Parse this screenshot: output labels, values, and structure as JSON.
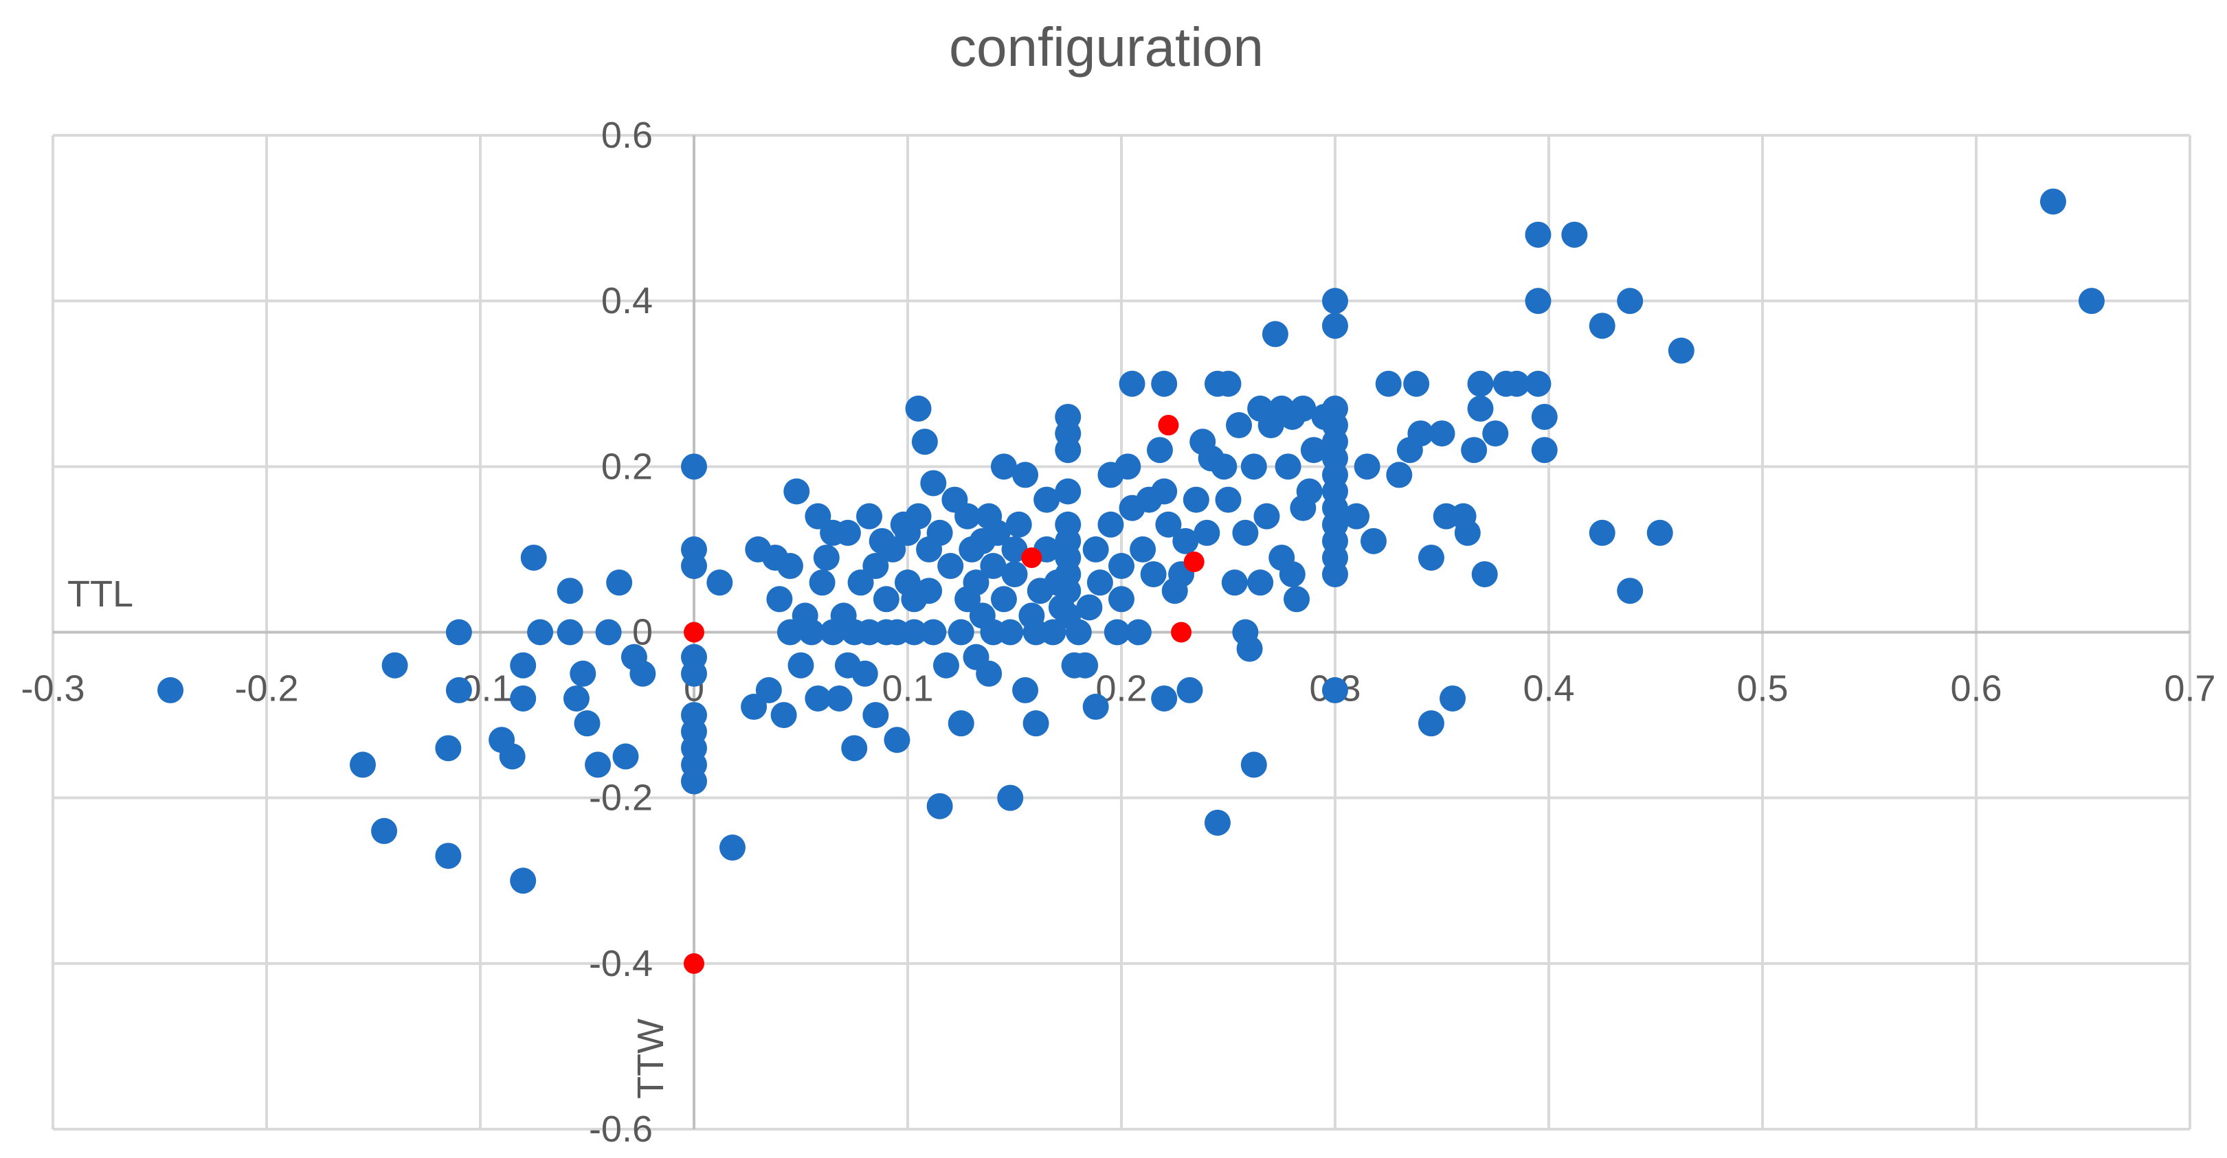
{
  "chart_data": {
    "type": "scatter",
    "title": "configuration",
    "xlabel": "TTL",
    "ylabel": "TTW",
    "xlim": [
      -0.3,
      0.7
    ],
    "ylim": [
      -0.6,
      0.6
    ],
    "x_ticks": [
      -0.3,
      -0.2,
      -0.1,
      0,
      0.1,
      0.2,
      0.3,
      0.4,
      0.5,
      0.6,
      0.7
    ],
    "y_ticks": [
      -0.6,
      -0.4,
      -0.2,
      0,
      0.2,
      0.4,
      0.6
    ],
    "x_tick_labels": [
      "-0.3",
      "-0.2",
      "-0.1",
      "0",
      "0.1",
      "0.2",
      "0.3",
      "0.4",
      "0.5",
      "0.6",
      "0.7"
    ],
    "y_tick_labels": [
      "-0.6",
      "-0.4",
      "-0.2",
      "0",
      "0.2",
      "0.4",
      "0.6"
    ],
    "grid": true,
    "legend": "none",
    "series": [
      {
        "color": "#1f6fc5",
        "points": [
          [
            -0.245,
            -0.07
          ],
          [
            -0.155,
            -0.16
          ],
          [
            -0.145,
            -0.24
          ],
          [
            -0.14,
            -0.04
          ],
          [
            -0.115,
            -0.27
          ],
          [
            -0.115,
            -0.14
          ],
          [
            -0.11,
            0.0
          ],
          [
            -0.11,
            -0.07
          ],
          [
            -0.09,
            -0.13
          ],
          [
            -0.085,
            -0.15
          ],
          [
            -0.08,
            -0.04
          ],
          [
            -0.08,
            -0.08
          ],
          [
            -0.08,
            -0.3
          ],
          [
            -0.075,
            0.09
          ],
          [
            -0.072,
            0.0
          ],
          [
            -0.058,
            0.0
          ],
          [
            -0.058,
            0.05
          ],
          [
            -0.055,
            -0.08
          ],
          [
            -0.052,
            -0.05
          ],
          [
            -0.05,
            -0.11
          ],
          [
            -0.045,
            -0.16
          ],
          [
            -0.04,
            0.0
          ],
          [
            -0.035,
            0.06
          ],
          [
            -0.032,
            -0.15
          ],
          [
            -0.028,
            -0.03
          ],
          [
            -0.024,
            -0.05
          ],
          [
            0.0,
            0.2
          ],
          [
            0.0,
            0.1
          ],
          [
            0.0,
            0.08
          ],
          [
            0.0,
            -0.05
          ],
          [
            0.0,
            -0.1
          ],
          [
            0.0,
            -0.12
          ],
          [
            0.0,
            -0.14
          ],
          [
            0.0,
            -0.16
          ],
          [
            0.0,
            -0.18
          ],
          [
            0.0,
            -0.03
          ],
          [
            0.012,
            0.06
          ],
          [
            0.018,
            -0.26
          ],
          [
            0.028,
            -0.09
          ],
          [
            0.03,
            0.1
          ],
          [
            0.035,
            -0.07
          ],
          [
            0.038,
            0.09
          ],
          [
            0.04,
            0.04
          ],
          [
            0.042,
            -0.1
          ],
          [
            0.045,
            0.08
          ],
          [
            0.045,
            0.0
          ],
          [
            0.048,
            0.17
          ],
          [
            0.05,
            -0.04
          ],
          [
            0.052,
            0.02
          ],
          [
            0.055,
            0.0
          ],
          [
            0.058,
            0.14
          ],
          [
            0.058,
            -0.08
          ],
          [
            0.06,
            0.06
          ],
          [
            0.062,
            0.09
          ],
          [
            0.065,
            0.0
          ],
          [
            0.065,
            0.12
          ],
          [
            0.068,
            -0.08
          ],
          [
            0.07,
            0.02
          ],
          [
            0.072,
            0.12
          ],
          [
            0.072,
            -0.04
          ],
          [
            0.075,
            0.0
          ],
          [
            0.075,
            -0.14
          ],
          [
            0.078,
            0.06
          ],
          [
            0.08,
            -0.05
          ],
          [
            0.082,
            0.14
          ],
          [
            0.082,
            0.0
          ],
          [
            0.085,
            0.08
          ],
          [
            0.085,
            -0.1
          ],
          [
            0.088,
            0.11
          ],
          [
            0.09,
            0.0
          ],
          [
            0.09,
            0.04
          ],
          [
            0.093,
            0.1
          ],
          [
            0.095,
            -0.13
          ],
          [
            0.095,
            0.0
          ],
          [
            0.098,
            0.13
          ],
          [
            0.1,
            0.06
          ],
          [
            0.1,
            0.12
          ],
          [
            0.103,
            0.0
          ],
          [
            0.103,
            0.04
          ],
          [
            0.105,
            0.14
          ],
          [
            0.105,
            0.27
          ],
          [
            0.108,
            0.23
          ],
          [
            0.11,
            0.1
          ],
          [
            0.11,
            0.05
          ],
          [
            0.112,
            0.18
          ],
          [
            0.112,
            0.0
          ],
          [
            0.115,
            -0.21
          ],
          [
            0.115,
            0.12
          ],
          [
            0.118,
            -0.04
          ],
          [
            0.12,
            0.08
          ],
          [
            0.122,
            0.16
          ],
          [
            0.125,
            -0.11
          ],
          [
            0.125,
            0.0
          ],
          [
            0.128,
            0.04
          ],
          [
            0.128,
            0.14
          ],
          [
            0.13,
            0.1
          ],
          [
            0.132,
            -0.03
          ],
          [
            0.132,
            0.06
          ],
          [
            0.135,
            0.11
          ],
          [
            0.135,
            0.02
          ],
          [
            0.138,
            0.14
          ],
          [
            0.138,
            -0.05
          ],
          [
            0.14,
            0.08
          ],
          [
            0.14,
            0.0
          ],
          [
            0.142,
            0.12
          ],
          [
            0.145,
            0.04
          ],
          [
            0.145,
            0.2
          ],
          [
            0.148,
            -0.2
          ],
          [
            0.148,
            0.0
          ],
          [
            0.15,
            0.1
          ],
          [
            0.15,
            0.07
          ],
          [
            0.152,
            0.13
          ],
          [
            0.155,
            -0.07
          ],
          [
            0.155,
            0.19
          ],
          [
            0.158,
            0.02
          ],
          [
            0.16,
            -0.11
          ],
          [
            0.16,
            0.0
          ],
          [
            0.162,
            0.05
          ],
          [
            0.165,
            0.16
          ],
          [
            0.165,
            0.1
          ],
          [
            0.168,
            0.0
          ],
          [
            0.17,
            0.06
          ],
          [
            0.172,
            0.03
          ],
          [
            0.175,
            0.26
          ],
          [
            0.175,
            0.24
          ],
          [
            0.175,
            0.22
          ],
          [
            0.175,
            0.17
          ],
          [
            0.175,
            0.13
          ],
          [
            0.175,
            0.11
          ],
          [
            0.175,
            0.09
          ],
          [
            0.175,
            0.07
          ],
          [
            0.175,
            0.05
          ],
          [
            0.175,
            0.02
          ],
          [
            0.178,
            -0.04
          ],
          [
            0.18,
            0.0
          ],
          [
            0.183,
            -0.04
          ],
          [
            0.185,
            0.03
          ],
          [
            0.188,
            0.1
          ],
          [
            0.188,
            -0.09
          ],
          [
            0.19,
            0.06
          ],
          [
            0.195,
            0.19
          ],
          [
            0.195,
            0.13
          ],
          [
            0.198,
            0.0
          ],
          [
            0.2,
            0.08
          ],
          [
            0.2,
            0.04
          ],
          [
            0.203,
            0.2
          ],
          [
            0.205,
            0.15
          ],
          [
            0.205,
            0.3
          ],
          [
            0.208,
            0.0
          ],
          [
            0.21,
            0.1
          ],
          [
            0.213,
            0.16
          ],
          [
            0.215,
            0.07
          ],
          [
            0.218,
            0.22
          ],
          [
            0.22,
            0.3
          ],
          [
            0.22,
            0.17
          ],
          [
            0.22,
            -0.08
          ],
          [
            0.222,
            0.13
          ],
          [
            0.225,
            0.05
          ],
          [
            0.228,
            0.07
          ],
          [
            0.23,
            0.11
          ],
          [
            0.232,
            -0.07
          ],
          [
            0.235,
            0.16
          ],
          [
            0.238,
            0.23
          ],
          [
            0.24,
            0.12
          ],
          [
            0.242,
            0.21
          ],
          [
            0.245,
            0.3
          ],
          [
            0.245,
            -0.23
          ],
          [
            0.248,
            0.2
          ],
          [
            0.25,
            0.16
          ],
          [
            0.25,
            0.3
          ],
          [
            0.253,
            0.06
          ],
          [
            0.255,
            0.25
          ],
          [
            0.258,
            0.12
          ],
          [
            0.258,
            0.0
          ],
          [
            0.26,
            -0.02
          ],
          [
            0.262,
            0.2
          ],
          [
            0.262,
            -0.16
          ],
          [
            0.265,
            0.27
          ],
          [
            0.265,
            0.06
          ],
          [
            0.268,
            0.14
          ],
          [
            0.27,
            0.25
          ],
          [
            0.272,
            0.36
          ],
          [
            0.275,
            0.27
          ],
          [
            0.275,
            0.09
          ],
          [
            0.278,
            0.2
          ],
          [
            0.28,
            0.26
          ],
          [
            0.28,
            0.07
          ],
          [
            0.282,
            0.04
          ],
          [
            0.285,
            0.15
          ],
          [
            0.285,
            0.27
          ],
          [
            0.288,
            0.17
          ],
          [
            0.29,
            0.22
          ],
          [
            0.295,
            0.26
          ],
          [
            0.3,
            0.4
          ],
          [
            0.3,
            0.37
          ],
          [
            0.3,
            0.27
          ],
          [
            0.3,
            0.25
          ],
          [
            0.3,
            0.23
          ],
          [
            0.3,
            0.21
          ],
          [
            0.3,
            0.19
          ],
          [
            0.3,
            0.17
          ],
          [
            0.3,
            0.15
          ],
          [
            0.3,
            0.13
          ],
          [
            0.3,
            0.11
          ],
          [
            0.3,
            0.09
          ],
          [
            0.3,
            0.07
          ],
          [
            0.3,
            -0.07
          ],
          [
            0.31,
            0.14
          ],
          [
            0.315,
            0.2
          ],
          [
            0.318,
            0.11
          ],
          [
            0.325,
            0.3
          ],
          [
            0.33,
            0.19
          ],
          [
            0.335,
            0.22
          ],
          [
            0.338,
            0.3
          ],
          [
            0.34,
            0.24
          ],
          [
            0.345,
            0.09
          ],
          [
            0.345,
            -0.11
          ],
          [
            0.35,
            0.24
          ],
          [
            0.352,
            0.14
          ],
          [
            0.355,
            -0.08
          ],
          [
            0.36,
            0.14
          ],
          [
            0.362,
            0.12
          ],
          [
            0.365,
            0.22
          ],
          [
            0.368,
            0.3
          ],
          [
            0.368,
            0.27
          ],
          [
            0.37,
            0.07
          ],
          [
            0.375,
            0.24
          ],
          [
            0.38,
            0.3
          ],
          [
            0.385,
            0.3
          ],
          [
            0.395,
            0.48
          ],
          [
            0.395,
            0.4
          ],
          [
            0.395,
            0.3
          ],
          [
            0.398,
            0.26
          ],
          [
            0.398,
            0.22
          ],
          [
            0.412,
            0.48
          ],
          [
            0.425,
            0.37
          ],
          [
            0.425,
            0.12
          ],
          [
            0.438,
            0.4
          ],
          [
            0.438,
            0.05
          ],
          [
            0.452,
            0.12
          ],
          [
            0.462,
            0.34
          ],
          [
            0.636,
            0.52
          ],
          [
            0.654,
            0.4
          ]
        ]
      },
      {
        "color": "#ff0000",
        "points": [
          [
            0.0,
            0.0
          ],
          [
            0.0,
            -0.4
          ],
          [
            0.158,
            0.09
          ],
          [
            0.222,
            0.25
          ],
          [
            0.228,
            0.0
          ],
          [
            0.234,
            0.085
          ]
        ]
      }
    ]
  }
}
